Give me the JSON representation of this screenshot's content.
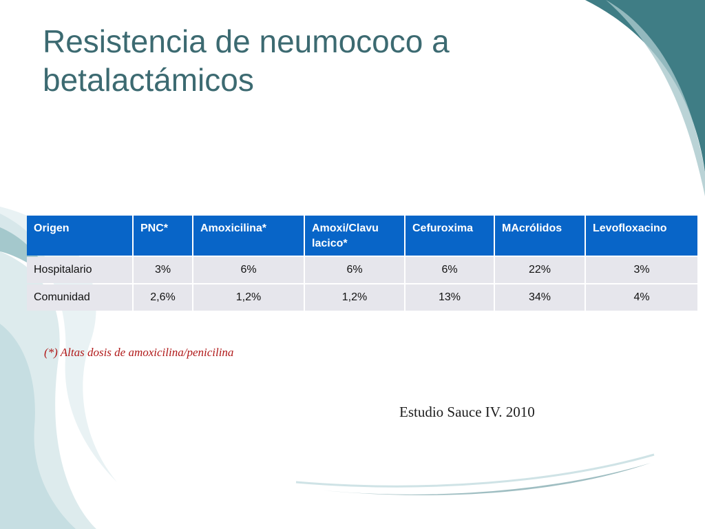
{
  "slide": {
    "title_lines": [
      "Resistencia de neumococo a",
      "betalactámicos"
    ],
    "table": {
      "headers": [
        "Origen",
        "PNC*",
        "Amoxicilina*",
        "Amoxi/Clavu lacico*",
        "Cefuroxima",
        "MAcrólidos",
        "Levofloxacino"
      ],
      "rows": [
        [
          "Hospitalario",
          "3%",
          "6%",
          "6%",
          "6%",
          "22%",
          "3%"
        ],
        [
          "Comunidad",
          "2,6%",
          "1,2%",
          "1,2%",
          "13%",
          "34%",
          "4%"
        ]
      ]
    },
    "footnote": "(*) Altas  dosis de amoxicilina/penicilina",
    "source": "Estudio Sauce IV. 2010"
  },
  "theme": {
    "title_color": "#3c6a71",
    "header_bg": "#0865c8",
    "cell_bg": "#e6e6ec",
    "footnote_color": "#b01818",
    "accent_teal": "#3f7d85"
  }
}
